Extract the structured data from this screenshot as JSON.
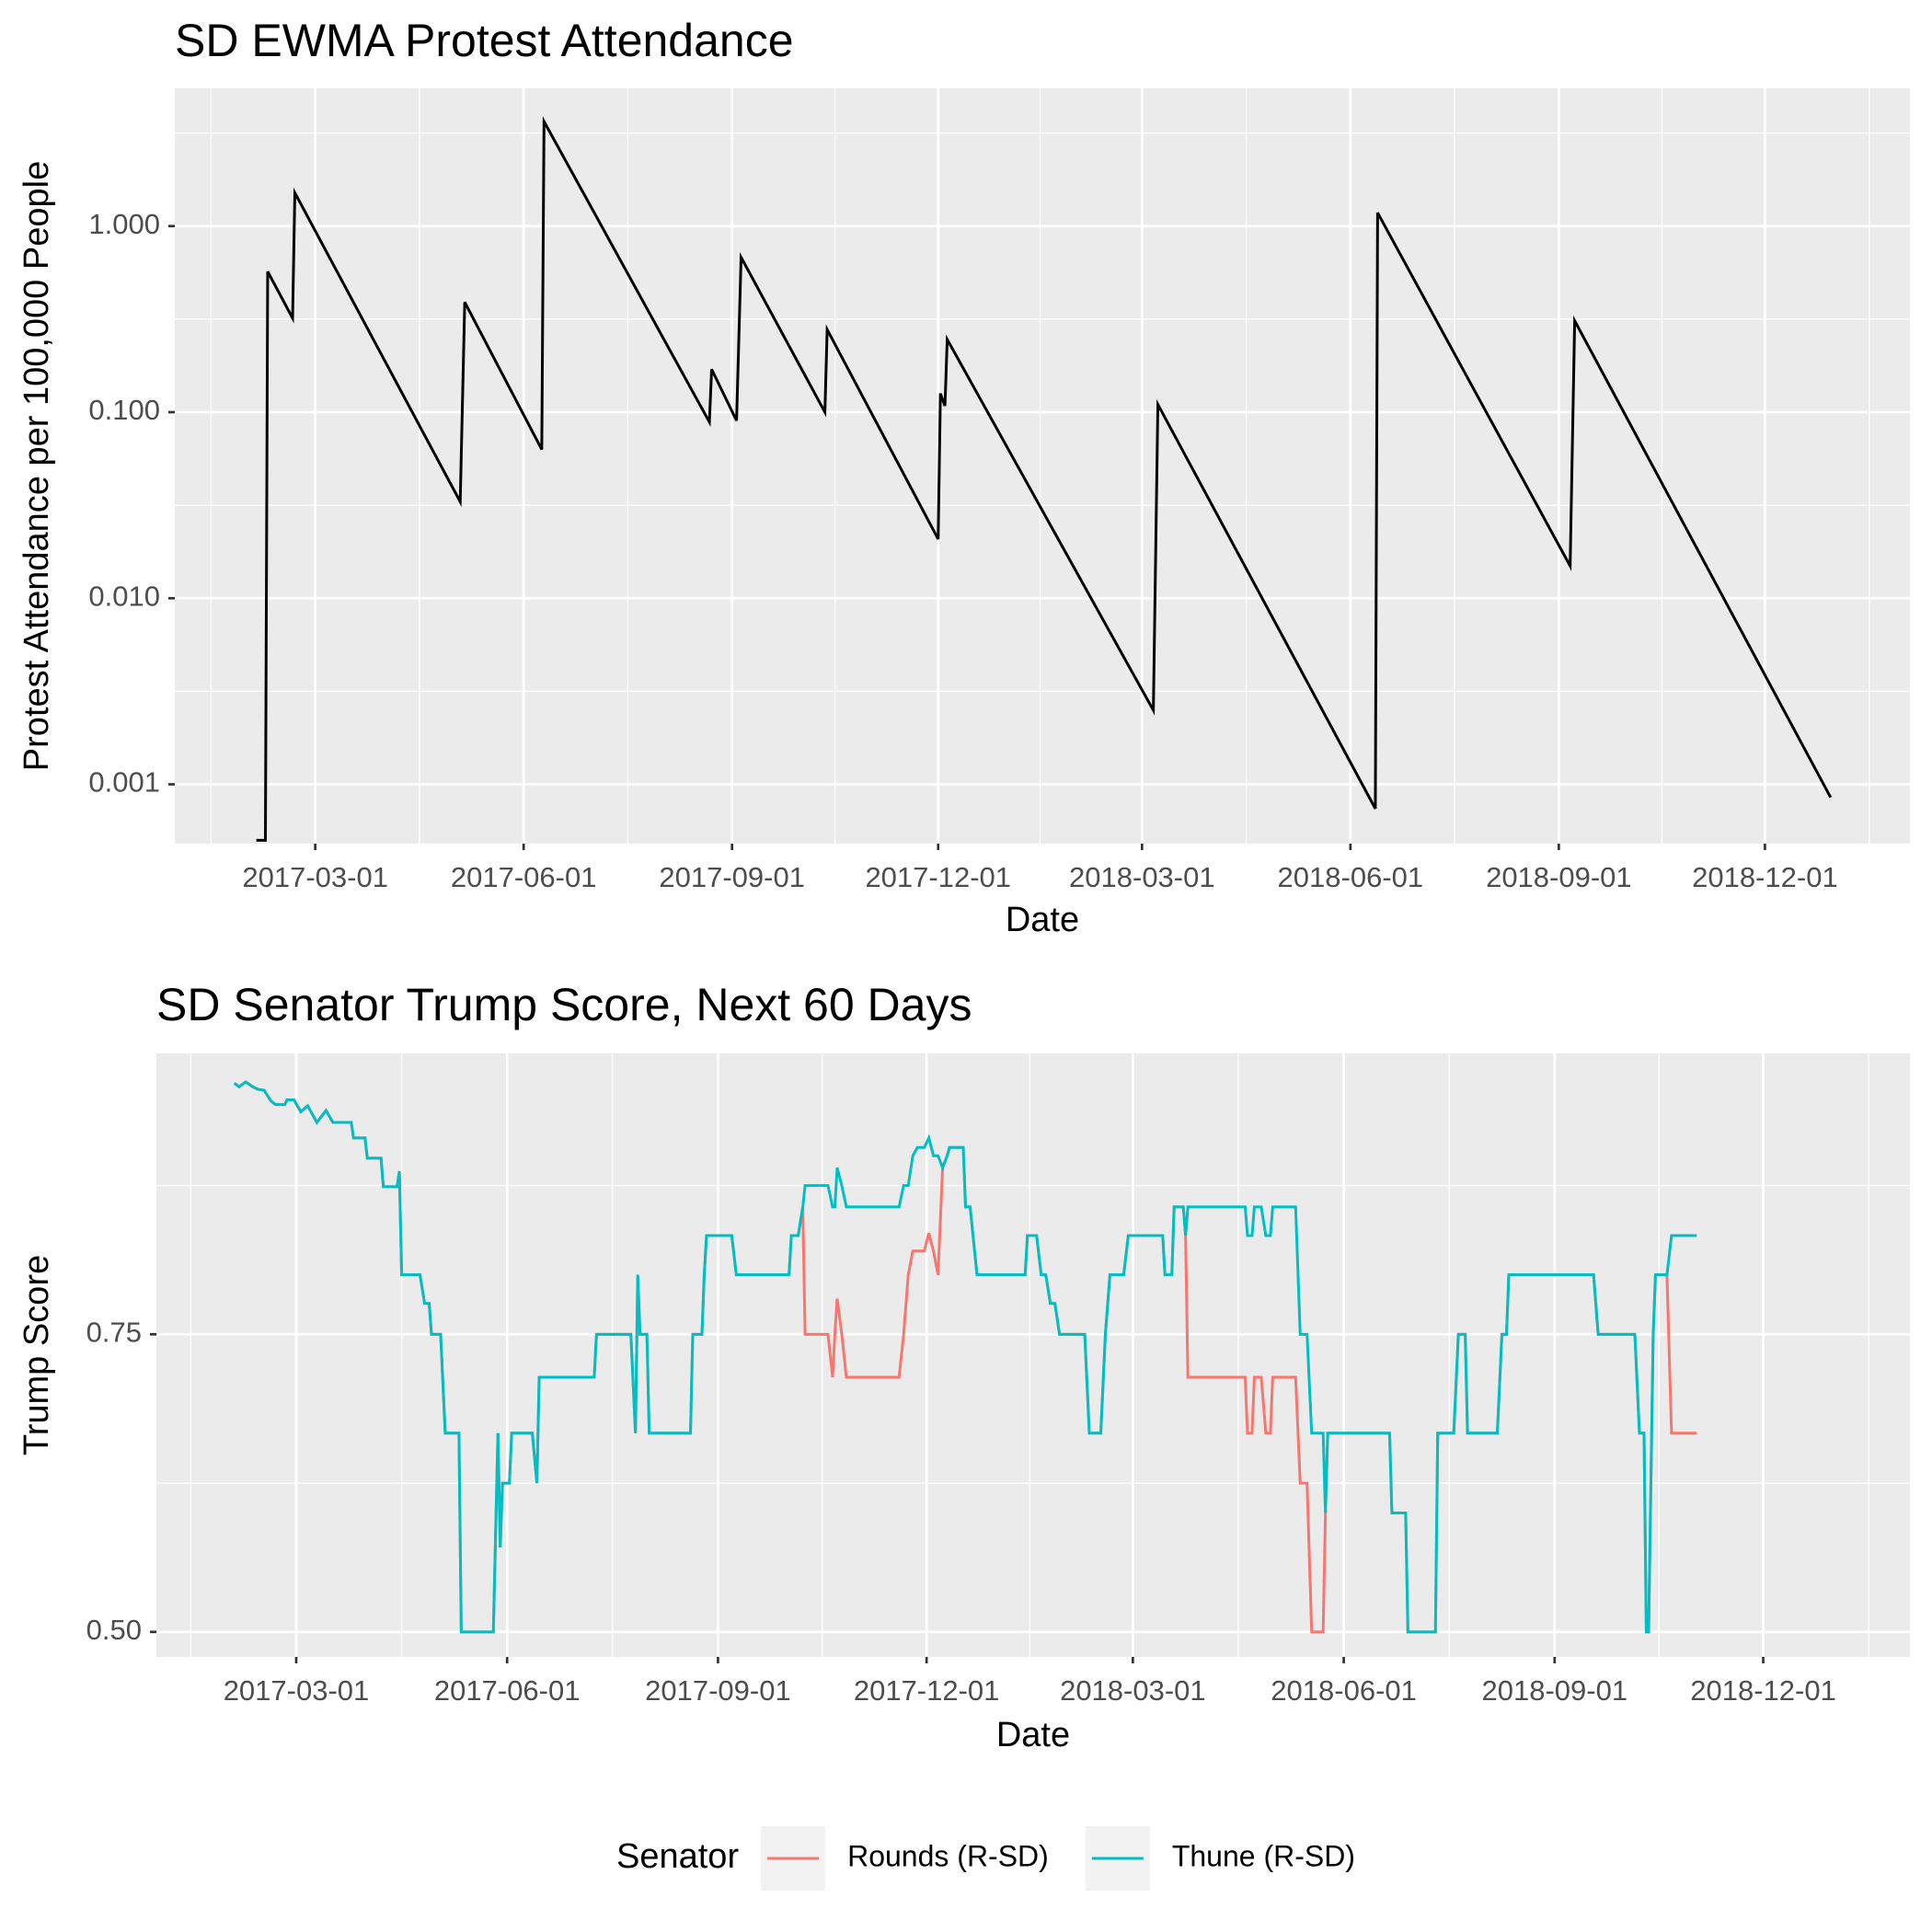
{
  "chart_data": [
    {
      "type": "line",
      "title": "SD EWMA Protest Attendance",
      "xlabel": "Date",
      "ylabel": "Protest Attendance per 100,000 People",
      "yscale": "log",
      "grid": true,
      "color": "#000000",
      "x": [
        "2017-02-03",
        "2017-02-07",
        "2017-02-08",
        "2017-02-19",
        "2017-02-20",
        "2017-05-04",
        "2017-05-06",
        "2017-06-09",
        "2017-06-10",
        "2017-08-22",
        "2017-08-23",
        "2017-09-03",
        "2017-09-05",
        "2017-10-12",
        "2017-10-13",
        "2017-12-01",
        "2017-12-02",
        "2017-12-04",
        "2017-12-05",
        "2018-03-06",
        "2018-03-08",
        "2018-06-12",
        "2018-06-13",
        "2018-09-06",
        "2018-09-08",
        "2018-12-30"
      ],
      "values": [
        0.0005,
        0.0005,
        0.57,
        0.32,
        1.51,
        0.033,
        0.39,
        0.063,
        3.65,
        0.0885,
        0.17,
        0.09,
        0.68,
        0.1,
        0.278,
        0.0208,
        0.126,
        0.108,
        0.246,
        0.0025,
        0.11,
        0.00074,
        1.18,
        0.0149,
        0.31,
        0.00085
      ],
      "xlim": [
        "2016-12-29",
        "2019-02-03"
      ],
      "xticks": [
        "2017-03-01",
        "2017-06-01",
        "2017-09-01",
        "2017-12-01",
        "2018-03-01",
        "2018-06-01",
        "2018-09-01",
        "2018-12-01"
      ],
      "ylim": [
        0.00048,
        5.5
      ],
      "yticks": [
        0.001,
        {
          "value": 0.01,
          "label": "0.010"
        },
        {
          "value": 0.1,
          "label": "0.100"
        },
        {
          "value": 1,
          "label": "1.000"
        }
      ]
    },
    {
      "type": "line",
      "title": "SD Senator Trump Score, Next 60 Days",
      "xlabel": "Date",
      "ylabel": "Trump Score",
      "grid": true,
      "legend_title": "Senator",
      "legend_position": "bottom",
      "x": [
        "2017-02-02",
        "2017-02-04",
        "2017-02-07",
        "2017-02-10",
        "2017-02-12",
        "2017-02-15",
        "2017-02-18",
        "2017-02-20",
        "2017-02-24",
        "2017-02-25",
        "2017-02-28",
        "2017-03-03",
        "2017-03-06",
        "2017-03-10",
        "2017-03-14",
        "2017-03-17",
        "2017-03-25",
        "2017-03-26",
        "2017-03-31",
        "2017-04-01",
        "2017-04-07",
        "2017-04-08",
        "2017-04-14",
        "2017-04-15",
        "2017-04-16",
        "2017-04-24",
        "2017-04-26",
        "2017-04-28",
        "2017-04-29",
        "2017-05-03",
        "2017-05-05",
        "2017-05-11",
        "2017-05-12",
        "2017-05-26",
        "2017-05-28",
        "2017-05-29",
        "2017-05-30",
        "2017-06-02",
        "2017-06-03",
        "2017-06-12",
        "2017-06-14",
        "2017-06-15",
        "2017-07-09",
        "2017-07-10",
        "2017-07-25",
        "2017-07-27",
        "2017-07-28",
        "2017-07-29",
        "2017-08-01",
        "2017-08-02",
        "2017-08-20",
        "2017-08-21",
        "2017-08-25",
        "2017-08-26",
        "2017-08-27",
        "2017-09-07",
        "2017-09-09",
        "2017-10-02",
        "2017-10-03",
        "2017-10-06",
        "2017-10-08",
        "2017-10-09",
        "2017-10-19",
        "2017-10-21",
        "2017-10-22",
        "2017-10-23",
        "2017-10-25",
        "2017-10-27",
        "2017-11-19",
        "2017-11-21",
        "2017-11-23",
        "2017-11-25",
        "2017-11-27",
        "2017-11-30",
        "2017-12-02",
        "2017-12-04",
        "2017-12-06",
        "2017-12-08",
        "2017-12-10",
        "2017-12-11",
        "2017-12-17",
        "2017-12-18",
        "2017-12-20",
        "2017-12-23",
        "2018-01-13",
        "2018-01-14",
        "2018-01-18",
        "2018-01-20",
        "2018-01-22",
        "2018-01-24",
        "2018-01-26",
        "2018-01-28",
        "2018-02-08",
        "2018-02-10",
        "2018-02-15",
        "2018-02-17",
        "2018-02-19",
        "2018-02-25",
        "2018-02-27",
        "2018-03-14",
        "2018-03-15",
        "2018-03-18",
        "2018-03-19",
        "2018-03-23",
        "2018-03-24",
        "2018-03-25",
        "2018-04-19",
        "2018-04-20",
        "2018-04-22",
        "2018-04-23",
        "2018-04-26",
        "2018-04-28",
        "2018-04-30",
        "2018-05-01",
        "2018-05-11",
        "2018-05-13",
        "2018-05-16",
        "2018-05-18",
        "2018-05-23",
        "2018-05-24",
        "2018-05-25",
        "2018-06-21",
        "2018-06-22",
        "2018-06-28",
        "2018-06-29",
        "2018-07-11",
        "2018-07-12",
        "2018-07-19",
        "2018-07-21",
        "2018-07-24",
        "2018-07-25",
        "2018-08-07",
        "2018-08-09",
        "2018-08-11",
        "2018-08-12",
        "2018-09-18",
        "2018-09-20",
        "2018-10-06",
        "2018-10-08",
        "2018-10-10",
        "2018-10-11",
        "2018-10-12",
        "2018-10-14",
        "2018-10-15",
        "2018-10-20",
        "2018-10-22",
        "2018-11-02"
      ],
      "series": [
        {
          "name": "Rounds (R-SD)",
          "color": "#F8766D",
          "values": [
            0.961,
            0.958,
            0.962,
            0.958,
            0.956,
            0.955,
            0.946,
            0.943,
            0.943,
            0.947,
            0.947,
            0.937,
            0.942,
            0.928,
            0.938,
            0.928,
            0.928,
            0.915,
            0.915,
            0.898,
            0.898,
            0.874,
            0.874,
            0.887,
            0.8,
            0.8,
            0.776,
            0.776,
            0.75,
            0.75,
            0.667,
            0.667,
            0.5,
            0.5,
            0.667,
            0.571,
            0.625,
            0.625,
            0.667,
            0.667,
            0.625,
            0.714,
            0.714,
            0.75,
            0.75,
            0.667,
            0.8,
            0.75,
            0.75,
            0.667,
            0.667,
            0.75,
            0.75,
            0.8,
            0.833,
            0.833,
            0.8,
            0.8,
            0.833,
            0.833,
            0.857,
            0.75,
            0.75,
            0.714,
            0.75,
            0.78,
            0.75,
            0.714,
            0.714,
            0.75,
            0.8,
            0.82,
            0.82,
            0.82,
            0.835,
            0.82,
            0.8,
            0.89,
            0.9,
            0.907,
            0.907,
            0.857,
            0.857,
            0.8,
            0.8,
            0.833,
            0.833,
            0.8,
            0.8,
            0.776,
            0.776,
            0.75,
            0.75,
            0.667,
            0.667,
            0.75,
            0.8,
            0.8,
            0.833,
            0.833,
            0.8,
            0.8,
            0.857,
            0.857,
            0.833,
            0.714,
            0.714,
            0.667,
            0.667,
            0.714,
            0.714,
            0.667,
            0.667,
            0.714,
            0.714,
            0.625,
            0.625,
            0.5,
            0.5,
            0.6,
            0.667,
            0.667,
            0.6,
            0.6,
            0.5,
            0.5,
            0.667,
            0.667,
            0.75,
            0.75,
            0.667,
            0.667,
            0.75,
            0.75,
            0.8,
            0.8,
            0.75,
            0.75,
            0.667,
            0.667,
            0.5,
            0.5,
            0.75,
            0.8,
            0.8,
            0.667,
            0.667
          ]
        },
        {
          "name": "Thune (R-SD)",
          "color": "#00BFC4",
          "values": [
            0.961,
            0.958,
            0.962,
            0.958,
            0.956,
            0.955,
            0.946,
            0.943,
            0.943,
            0.947,
            0.947,
            0.937,
            0.942,
            0.928,
            0.938,
            0.928,
            0.928,
            0.915,
            0.915,
            0.898,
            0.898,
            0.874,
            0.874,
            0.887,
            0.8,
            0.8,
            0.776,
            0.776,
            0.75,
            0.75,
            0.667,
            0.667,
            0.5,
            0.5,
            0.667,
            0.571,
            0.625,
            0.625,
            0.667,
            0.667,
            0.625,
            0.714,
            0.714,
            0.75,
            0.75,
            0.667,
            0.8,
            0.75,
            0.75,
            0.667,
            0.667,
            0.75,
            0.75,
            0.8,
            0.833,
            0.833,
            0.8,
            0.8,
            0.833,
            0.833,
            0.857,
            0.875,
            0.875,
            0.857,
            0.857,
            0.89,
            0.875,
            0.857,
            0.857,
            0.875,
            0.875,
            0.9,
            0.907,
            0.907,
            0.915,
            0.9,
            0.9,
            0.89,
            0.9,
            0.907,
            0.907,
            0.857,
            0.857,
            0.8,
            0.8,
            0.833,
            0.833,
            0.8,
            0.8,
            0.776,
            0.776,
            0.75,
            0.75,
            0.667,
            0.667,
            0.75,
            0.8,
            0.8,
            0.833,
            0.833,
            0.8,
            0.8,
            0.857,
            0.857,
            0.833,
            0.857,
            0.857,
            0.833,
            0.833,
            0.857,
            0.857,
            0.833,
            0.833,
            0.857,
            0.857,
            0.75,
            0.75,
            0.667,
            0.667,
            0.6,
            0.667,
            0.667,
            0.6,
            0.6,
            0.5,
            0.5,
            0.667,
            0.667,
            0.75,
            0.75,
            0.667,
            0.667,
            0.75,
            0.75,
            0.8,
            0.8,
            0.75,
            0.75,
            0.667,
            0.667,
            0.5,
            0.5,
            0.75,
            0.8,
            0.8,
            0.833,
            0.833
          ]
        }
      ],
      "xlim": [
        "2016-12-30",
        "2019-02-03"
      ],
      "xticks": [
        "2017-03-01",
        "2017-06-01",
        "2017-09-01",
        "2017-12-01",
        "2018-03-01",
        "2018-06-01",
        "2018-09-01",
        "2018-12-01"
      ],
      "ylim": [
        0.479,
        0.986
      ],
      "yticks": [
        {
          "value": 0.5,
          "label": "0.50"
        },
        {
          "value": 0.75,
          "label": "0.75"
        }
      ]
    }
  ]
}
